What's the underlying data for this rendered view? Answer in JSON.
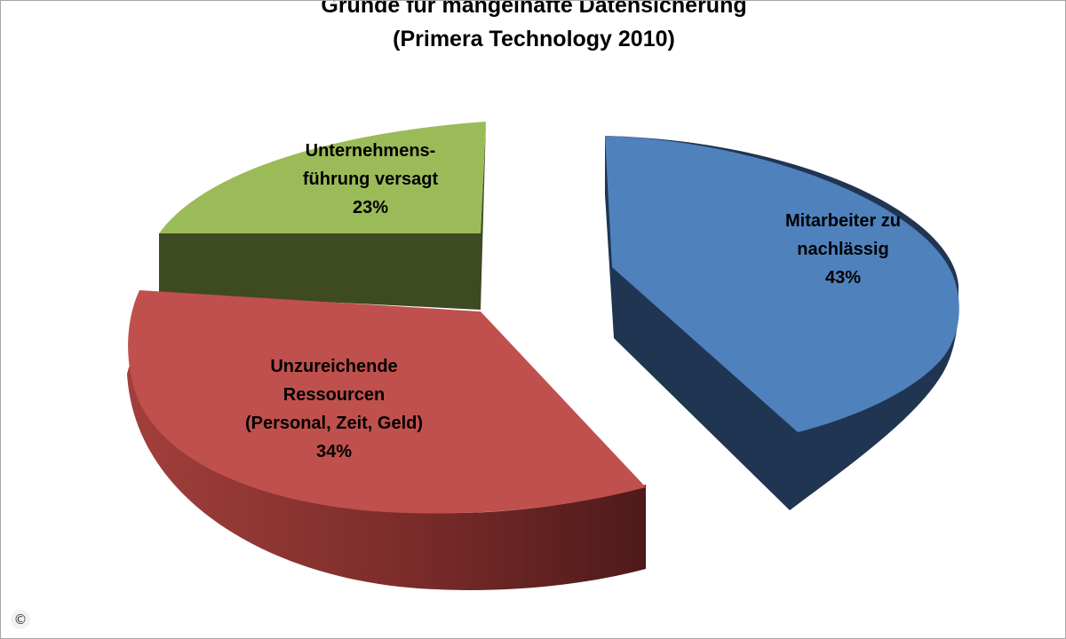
{
  "chart_data": {
    "type": "pie",
    "title": "Gründe für mangelhafte Datensicherung",
    "subtitle": "(Primera Technology 2010)",
    "slices": [
      {
        "label_lines": [
          "Mitarbeiter zu",
          "nachlässig"
        ],
        "value": 43,
        "value_label": "43%",
        "top_color": "#4f81bd",
        "side_color": "#1f3552"
      },
      {
        "label_lines": [
          "Unzureichende",
          "Ressourcen",
          "(Personal, Zeit, Geld)"
        ],
        "value": 34,
        "value_label": "34%",
        "top_color": "#c0504d",
        "side_color": "#5c1f1e"
      },
      {
        "label_lines": [
          "Unternehmens-",
          "führung versagt"
        ],
        "value": 23,
        "value_label": "23%",
        "top_color": "#9bbb59",
        "side_color": "#3d4a22"
      }
    ],
    "legend": "none",
    "style": "3d-exploded"
  },
  "footer": {
    "copyright_symbol": "©"
  }
}
